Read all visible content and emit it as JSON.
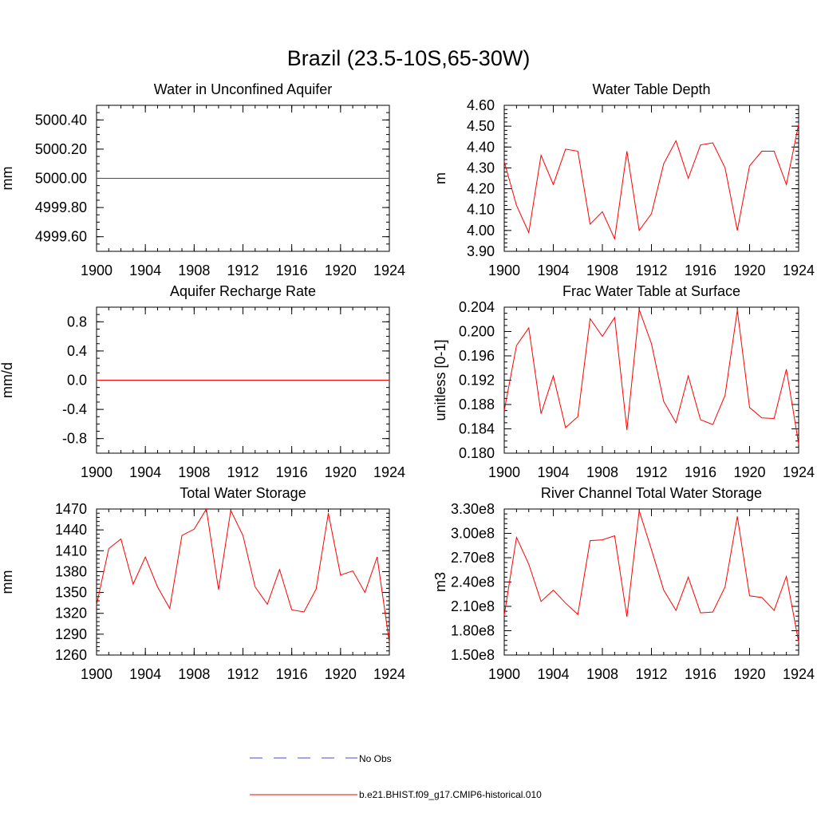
{
  "figure_title": "Brazil (23.5-10S,65-30W)",
  "legend": {
    "obs_label": "No Obs",
    "model_label": "b.e21.BHIST.f09_g17.CMIP6-historical.010",
    "obs_color": "#4a4ad0",
    "model_color": "#ff0000"
  },
  "chart_data": [
    {
      "type": "line",
      "title": "Water in Unconfined Aquifer",
      "ylabel": "mm",
      "xlabel": "",
      "xlim": [
        1900,
        1924
      ],
      "ylim": [
        4999.5,
        5000.5
      ],
      "xticks": [
        "1900",
        "1904",
        "1908",
        "1912",
        "1916",
        "1920",
        "1924"
      ],
      "xtick_values": [
        1900,
        1904,
        1908,
        1912,
        1916,
        1920,
        1924
      ],
      "yticks": [
        "4999.60",
        "4999.80",
        "5000.00",
        "5000.20",
        "5000.40"
      ],
      "ytick_values": [
        4999.6,
        4999.8,
        5000.0,
        5000.2,
        5000.4
      ],
      "ymin_minor": 0.05,
      "series": [
        {
          "name": "b.e21.BHIST.f09_g17.CMIP6-historical.010",
          "color": "#ff0000",
          "x": [
            1900,
            1901,
            1902,
            1903,
            1904,
            1905,
            1906,
            1907,
            1908,
            1909,
            1910,
            1911,
            1912,
            1913,
            1914,
            1915,
            1916,
            1917,
            1918,
            1919,
            1920,
            1921,
            1922,
            1923,
            1924
          ],
          "y": [
            5000,
            5000,
            5000,
            5000,
            5000,
            5000,
            5000,
            5000,
            5000,
            5000,
            5000,
            5000,
            5000,
            5000,
            5000,
            5000,
            5000,
            5000,
            5000,
            5000,
            5000,
            5000,
            5000,
            5000,
            5000
          ]
        }
      ]
    },
    {
      "type": "line",
      "title": "Water Table Depth",
      "ylabel": "m",
      "xlabel": "",
      "xlim": [
        1900,
        1924
      ],
      "ylim": [
        3.9,
        4.6
      ],
      "xticks": [
        "1900",
        "1904",
        "1908",
        "1912",
        "1916",
        "1920",
        "1924"
      ],
      "xtick_values": [
        1900,
        1904,
        1908,
        1912,
        1916,
        1920,
        1924
      ],
      "yticks": [
        "3.90",
        "4.00",
        "4.10",
        "4.20",
        "4.30",
        "4.40",
        "4.50",
        "4.60"
      ],
      "ytick_values": [
        3.9,
        4.0,
        4.1,
        4.2,
        4.3,
        4.4,
        4.5,
        4.6
      ],
      "ymin_minor": 0.02,
      "series": [
        {
          "name": "b.e21.BHIST.f09_g17.CMIP6-historical.010",
          "color": "#ff0000",
          "x": [
            1900,
            1901,
            1902,
            1903,
            1904,
            1905,
            1906,
            1907,
            1908,
            1909,
            1910,
            1911,
            1912,
            1913,
            1914,
            1915,
            1916,
            1917,
            1918,
            1919,
            1920,
            1921,
            1922,
            1923,
            1924
          ],
          "y": [
            4.33,
            4.12,
            3.99,
            4.36,
            4.22,
            4.39,
            4.38,
            4.03,
            4.09,
            3.96,
            4.38,
            4.0,
            4.08,
            4.32,
            4.43,
            4.25,
            4.41,
            4.42,
            4.3,
            4.0,
            4.31,
            4.38,
            4.38,
            4.22,
            4.51
          ]
        }
      ]
    },
    {
      "type": "line",
      "title": "Aquifer Recharge Rate",
      "ylabel": "mm/d",
      "xlabel": "",
      "xlim": [
        1900,
        1924
      ],
      "ylim": [
        -1.0,
        1.0
      ],
      "xticks": [
        "1900",
        "1904",
        "1908",
        "1912",
        "1916",
        "1920",
        "1924"
      ],
      "xtick_values": [
        1900,
        1904,
        1908,
        1912,
        1916,
        1920,
        1924
      ],
      "yticks": [
        "-0.8",
        "-0.4",
        "0.0",
        "0.4",
        "0.8"
      ],
      "ytick_values": [
        -0.8,
        -0.4,
        0.0,
        0.4,
        0.8
      ],
      "ymin_minor": 0.1,
      "series": [
        {
          "name": "b.e21.BHIST.f09_g17.CMIP6-historical.010",
          "color": "#ff0000",
          "x": [
            1900,
            1901,
            1902,
            1903,
            1904,
            1905,
            1906,
            1907,
            1908,
            1909,
            1910,
            1911,
            1912,
            1913,
            1914,
            1915,
            1916,
            1917,
            1918,
            1919,
            1920,
            1921,
            1922,
            1923,
            1924
          ],
          "y": [
            0,
            0,
            0,
            0,
            0,
            0,
            0,
            0,
            0,
            0,
            0,
            0,
            0,
            0,
            0,
            0,
            0,
            0,
            0,
            0,
            0,
            0,
            0,
            0,
            0
          ]
        }
      ]
    },
    {
      "type": "line",
      "title": "Frac Water Table at Surface",
      "ylabel": "unitless [0-1]",
      "xlabel": "",
      "xlim": [
        1900,
        1924
      ],
      "ylim": [
        0.18,
        0.204
      ],
      "xticks": [
        "1900",
        "1904",
        "1908",
        "1912",
        "1916",
        "1920",
        "1924"
      ],
      "xtick_values": [
        1900,
        1904,
        1908,
        1912,
        1916,
        1920,
        1924
      ],
      "yticks": [
        "0.180",
        "0.184",
        "0.188",
        "0.192",
        "0.196",
        "0.200",
        "0.204"
      ],
      "ytick_values": [
        0.18,
        0.184,
        0.188,
        0.192,
        0.196,
        0.2,
        0.204
      ],
      "ymin_minor": 0.001,
      "series": [
        {
          "name": "b.e21.BHIST.f09_g17.CMIP6-historical.010",
          "color": "#ff0000",
          "x": [
            1900,
            1901,
            1902,
            1903,
            1904,
            1905,
            1906,
            1907,
            1908,
            1909,
            1910,
            1911,
            1912,
            1913,
            1914,
            1915,
            1916,
            1917,
            1918,
            1919,
            1920,
            1921,
            1922,
            1923,
            1924
          ],
          "y": [
            0.187,
            0.1977,
            0.2006,
            0.1865,
            0.1927,
            0.1842,
            0.186,
            0.2021,
            0.1992,
            0.2023,
            0.1838,
            0.2036,
            0.198,
            0.1885,
            0.185,
            0.1927,
            0.1855,
            0.1847,
            0.1895,
            0.2035,
            0.1875,
            0.1858,
            0.1857,
            0.1938,
            0.1815
          ]
        }
      ]
    },
    {
      "type": "line",
      "title": "Total Water Storage",
      "ylabel": "mm",
      "xlabel": "",
      "xlim": [
        1900,
        1924
      ],
      "ylim": [
        1260,
        1470
      ],
      "xticks": [
        "1900",
        "1904",
        "1908",
        "1912",
        "1916",
        "1920",
        "1924"
      ],
      "xtick_values": [
        1900,
        1904,
        1908,
        1912,
        1916,
        1920,
        1924
      ],
      "yticks": [
        "1260",
        "1290",
        "1320",
        "1350",
        "1380",
        "1410",
        "1440",
        "1470"
      ],
      "ytick_values": [
        1260,
        1290,
        1320,
        1350,
        1380,
        1410,
        1440,
        1470
      ],
      "ymin_minor": 6,
      "series": [
        {
          "name": "b.e21.BHIST.f09_g17.CMIP6-historical.010",
          "color": "#ff0000",
          "x": [
            1900,
            1901,
            1902,
            1903,
            1904,
            1905,
            1906,
            1907,
            1908,
            1909,
            1910,
            1911,
            1912,
            1913,
            1914,
            1915,
            1916,
            1917,
            1918,
            1919,
            1920,
            1921,
            1922,
            1923,
            1924
          ],
          "y": [
            1332,
            1413,
            1427,
            1362,
            1401,
            1358,
            1327,
            1432,
            1441,
            1470,
            1354,
            1468,
            1432,
            1358,
            1333,
            1383,
            1325,
            1322,
            1355,
            1464,
            1375,
            1381,
            1350,
            1401,
            1278
          ]
        }
      ]
    },
    {
      "type": "line",
      "title": "River Channel Total Water Storage",
      "ylabel": "m3",
      "xlabel": "",
      "xlim": [
        1900,
        1924
      ],
      "ylim": [
        150000000,
        330000000
      ],
      "xticks": [
        "1900",
        "1904",
        "1908",
        "1912",
        "1916",
        "1920",
        "1924"
      ],
      "xtick_values": [
        1900,
        1904,
        1908,
        1912,
        1916,
        1920,
        1924
      ],
      "yticks": [
        "1.50e8",
        "1.80e8",
        "2.10e8",
        "2.40e8",
        "2.70e8",
        "3.00e8",
        "3.30e8"
      ],
      "ytick_values": [
        150000000,
        180000000,
        210000000,
        240000000,
        270000000,
        300000000,
        330000000
      ],
      "ymin_minor": 6000000,
      "series": [
        {
          "name": "b.e21.BHIST.f09_g17.CMIP6-historical.010",
          "color": "#ff0000",
          "x": [
            1900,
            1901,
            1902,
            1903,
            1904,
            1905,
            1906,
            1907,
            1908,
            1909,
            1910,
            1911,
            1912,
            1913,
            1914,
            1915,
            1916,
            1917,
            1918,
            1919,
            1920,
            1921,
            1922,
            1923,
            1924
          ],
          "y": [
            199000000,
            295000000,
            262000000,
            216000000,
            230000000,
            214000000,
            200000000,
            291000000,
            292000000,
            297000000,
            197000000,
            328000000,
            280000000,
            230000000,
            205000000,
            246000000,
            202000000,
            203000000,
            234000000,
            321000000,
            223000000,
            221000000,
            205000000,
            247000000,
            166000000
          ]
        }
      ]
    }
  ]
}
